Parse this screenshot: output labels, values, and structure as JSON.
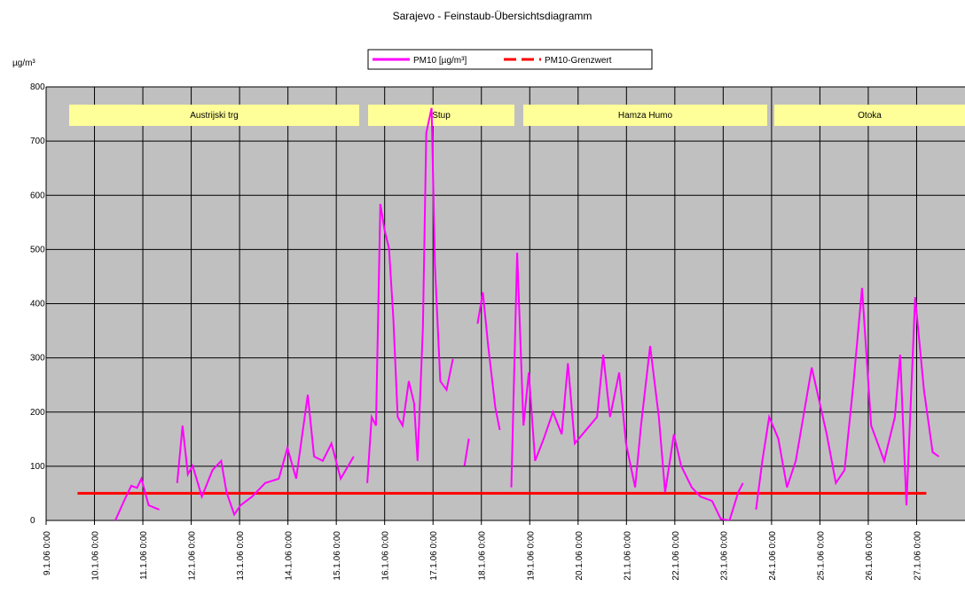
{
  "chart_data": {
    "type": "line",
    "title": "Sarajevo - Feinstaub-Übersichtsdiagramm",
    "y_label": "µg/m³",
    "annotations": [
      "Austrijski trg",
      "Stup",
      "Hamza Humo",
      "Otoka"
    ],
    "xlim": [
      9,
      28
    ],
    "xticks": [
      {
        "value": 9,
        "label": "9.1.06 0:00"
      },
      {
        "value": 10,
        "label": "10.1.06 0:00"
      },
      {
        "value": 11,
        "label": "11.1.06 0:00"
      },
      {
        "value": 12,
        "label": "12.1.06 0:00"
      },
      {
        "value": 13,
        "label": "13.1.06 0:00"
      },
      {
        "value": 14,
        "label": "14.1.06 0:00"
      },
      {
        "value": 15,
        "label": "15.1.06 0:00"
      },
      {
        "value": 16,
        "label": "16.1.06 0:00"
      },
      {
        "value": 17,
        "label": "17.1.06 0:00"
      },
      {
        "value": 18,
        "label": "18.1.06 0:00"
      },
      {
        "value": 19,
        "label": "19.1.06 0:00"
      },
      {
        "value": 20,
        "label": "20.1.06 0:00"
      },
      {
        "value": 21,
        "label": "21.1.06 0:00"
      },
      {
        "value": 22,
        "label": "22.1.06 0:00"
      },
      {
        "value": 23,
        "label": "23.1.06 0:00"
      },
      {
        "value": 24,
        "label": "24.1.06 0:00"
      },
      {
        "value": 25,
        "label": "25.1.06 0:00"
      },
      {
        "value": 26,
        "label": "26.1.06 0:00"
      },
      {
        "value": 27,
        "label": "27.1.06 0:00"
      }
    ],
    "ylim": [
      0,
      800
    ],
    "yticks": [
      0,
      100,
      200,
      300,
      400,
      500,
      600,
      700,
      800
    ],
    "grid": true,
    "series": [
      {
        "name": "PM10 [µg/m³]",
        "color": "#ff00ff",
        "x": [
          10.43,
          10.61,
          10.76,
          10.88,
          10.97,
          11.12,
          11.34,
          null,
          11.71,
          11.82,
          11.93,
          12.03,
          12.22,
          12.44,
          12.62,
          12.73,
          12.89,
          13.02,
          13.26,
          13.53,
          13.81,
          13.99,
          14.17,
          14.41,
          14.54,
          14.72,
          14.9,
          15.09,
          15.36,
          null,
          15.64,
          15.73,
          15.82,
          15.91,
          16.0,
          16.09,
          16.18,
          16.27,
          16.37,
          16.5,
          16.61,
          16.68,
          16.79,
          16.86,
          16.97,
          17.04,
          17.15,
          17.28,
          17.41,
          null,
          17.65,
          17.74,
          null,
          17.92,
          18.03,
          18.14,
          18.29,
          18.38,
          null,
          18.62,
          18.74,
          18.87,
          18.98,
          19.11,
          19.29,
          19.48,
          19.66,
          19.79,
          19.93,
          20.39,
          20.52,
          20.66,
          20.85,
          20.99,
          21.18,
          21.3,
          21.49,
          21.67,
          21.8,
          21.98,
          22.13,
          22.35,
          22.53,
          22.77,
          22.95,
          23.13,
          23.31,
          23.41,
          null,
          23.68,
          23.81,
          23.95,
          24.14,
          24.32,
          24.5,
          24.83,
          25.14,
          25.33,
          25.51,
          25.69,
          25.87,
          26.06,
          26.33,
          26.55,
          26.66,
          26.79,
          26.97,
          27.15,
          27.33,
          27.46
        ],
        "values": [
          0,
          36,
          64,
          60,
          77,
          28,
          20,
          null,
          69,
          175,
          85,
          101,
          44,
          93,
          110,
          52,
          11,
          28,
          44,
          69,
          77,
          134,
          77,
          232,
          118,
          110,
          142,
          77,
          118,
          null,
          69,
          191,
          175,
          584,
          535,
          502,
          372,
          191,
          175,
          257,
          216,
          110,
          355,
          715,
          761,
          470,
          257,
          241,
          298,
          null,
          101,
          151,
          null,
          363,
          421,
          322,
          208,
          167,
          null,
          61,
          494,
          175,
          273,
          110,
          151,
          200,
          159,
          290,
          142,
          191,
          306,
          191,
          273,
          142,
          61,
          175,
          322,
          191,
          52,
          159,
          101,
          61,
          44,
          36,
          3,
          0,
          52,
          69,
          null,
          20,
          110,
          191,
          151,
          61,
          110,
          282,
          159,
          69,
          93,
          249,
          429,
          175,
          110,
          191,
          306,
          28,
          412,
          241,
          126,
          118
        ]
      },
      {
        "name": "PM10-Grenzwert",
        "color": "#ff0000",
        "x": [
          9.65,
          27.2
        ],
        "values": [
          50,
          50
        ]
      }
    ]
  }
}
